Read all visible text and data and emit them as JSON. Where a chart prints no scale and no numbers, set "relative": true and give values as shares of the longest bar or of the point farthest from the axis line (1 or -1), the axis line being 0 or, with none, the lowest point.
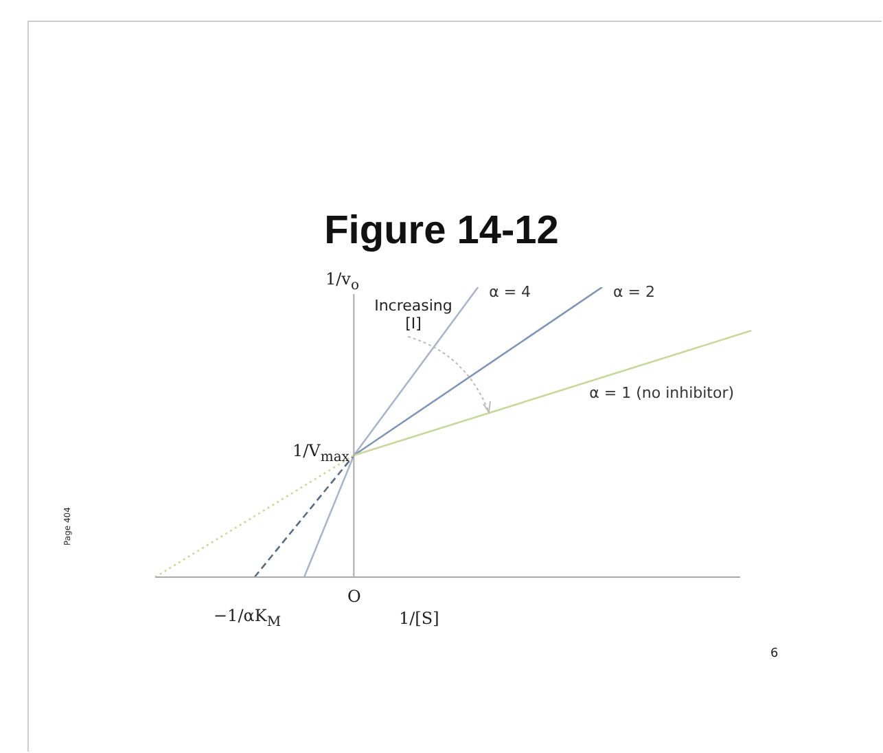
{
  "chart_data": {
    "type": "line",
    "title": "Figure 14-12",
    "xlabel": "1/[S]",
    "ylabel": "1/v$_{o}$",
    "relative": true,
    "marker": "none",
    "legend": false,
    "categories": [
      null,
      null,
      null,
      null,
      null,
      null,
      null,
      null,
      null,
      null,
      null,
      null,
      null,
      null,
      null,
      null,
      null,
      null,
      null,
      null,
      null,
      null,
      null,
      null,
      null,
      null,
      null,
      null,
      null,
      null,
      null,
      null,
      null,
      null,
      null,
      null,
      null,
      null,
      null,
      null,
      null,
      null,
      null,
      null,
      null,
      null,
      null,
      null,
      null
    ],
    "series": [
      {
        "name": "α = 1 (no inhibitor)",
        "color": "#c9d79b",
        "values": [
          null,
          null,
          null,
          null,
          null,
          null,
          null,
          null,
          null,
          null,
          null,
          null,
          null,
          null,
          null,
          null,
          0.42,
          null,
          null,
          null,
          null,
          null,
          null,
          null,
          null,
          null,
          null,
          null,
          null,
          null,
          null,
          null,
          null,
          null,
          null,
          null,
          null,
          null,
          null,
          null,
          null,
          null,
          null,
          null,
          null,
          null,
          null,
          null,
          0.85
        ]
      },
      {
        "color": "#c9d79b",
        "line_style": "dotted",
        "values": [
          0,
          null,
          null,
          null,
          null,
          null,
          null,
          null,
          null,
          null,
          null,
          null,
          null,
          null,
          null,
          null,
          0.42,
          null,
          null,
          null,
          null,
          null,
          null,
          null,
          null,
          null,
          null,
          null,
          null,
          null,
          null,
          null,
          null,
          null,
          null,
          null,
          null,
          null,
          null,
          null,
          null,
          null,
          null,
          null,
          null,
          null,
          null,
          null,
          null
        ]
      },
      {
        "name": "α = 2",
        "color": "#8095b4",
        "values": [
          null,
          null,
          null,
          null,
          null,
          null,
          null,
          null,
          null,
          null,
          null,
          null,
          null,
          null,
          null,
          null,
          0.42,
          null,
          null,
          null,
          null,
          null,
          null,
          null,
          null,
          null,
          null,
          null,
          null,
          null,
          null,
          null,
          null,
          null,
          null,
          null,
          1,
          null,
          null,
          null,
          null,
          null,
          null,
          null,
          null,
          null,
          null,
          null,
          null
        ]
      },
      {
        "color": "#5b6b80",
        "line_style": "dashed",
        "values": [
          null,
          null,
          null,
          null,
          null,
          null,
          null,
          null,
          0,
          null,
          null,
          null,
          null,
          null,
          null,
          null,
          0.42,
          null,
          null,
          null,
          null,
          null,
          null,
          null,
          null,
          null,
          null,
          null,
          null,
          null,
          null,
          null,
          null,
          null,
          null,
          null,
          null,
          null,
          null,
          null,
          null,
          null,
          null,
          null,
          null,
          null,
          null,
          null,
          null
        ]
      },
      {
        "name": "α = 4",
        "color": "#aab5c8",
        "values": [
          null,
          null,
          null,
          null,
          null,
          null,
          null,
          null,
          null,
          null,
          null,
          null,
          0,
          null,
          null,
          null,
          0.42,
          null,
          null,
          null,
          null,
          null,
          null,
          null,
          null,
          null,
          1,
          null,
          null,
          null,
          null,
          null,
          null,
          null,
          null,
          null,
          null,
          null,
          null,
          null,
          null,
          null,
          null,
          null,
          null,
          null,
          null,
          null,
          null
        ]
      }
    ],
    "annotations": [
      "O",
      "1/V$_{max}$",
      "−1/αK$_{M}$",
      "Increasing [I]",
      "Page 404",
      "6"
    ]
  }
}
